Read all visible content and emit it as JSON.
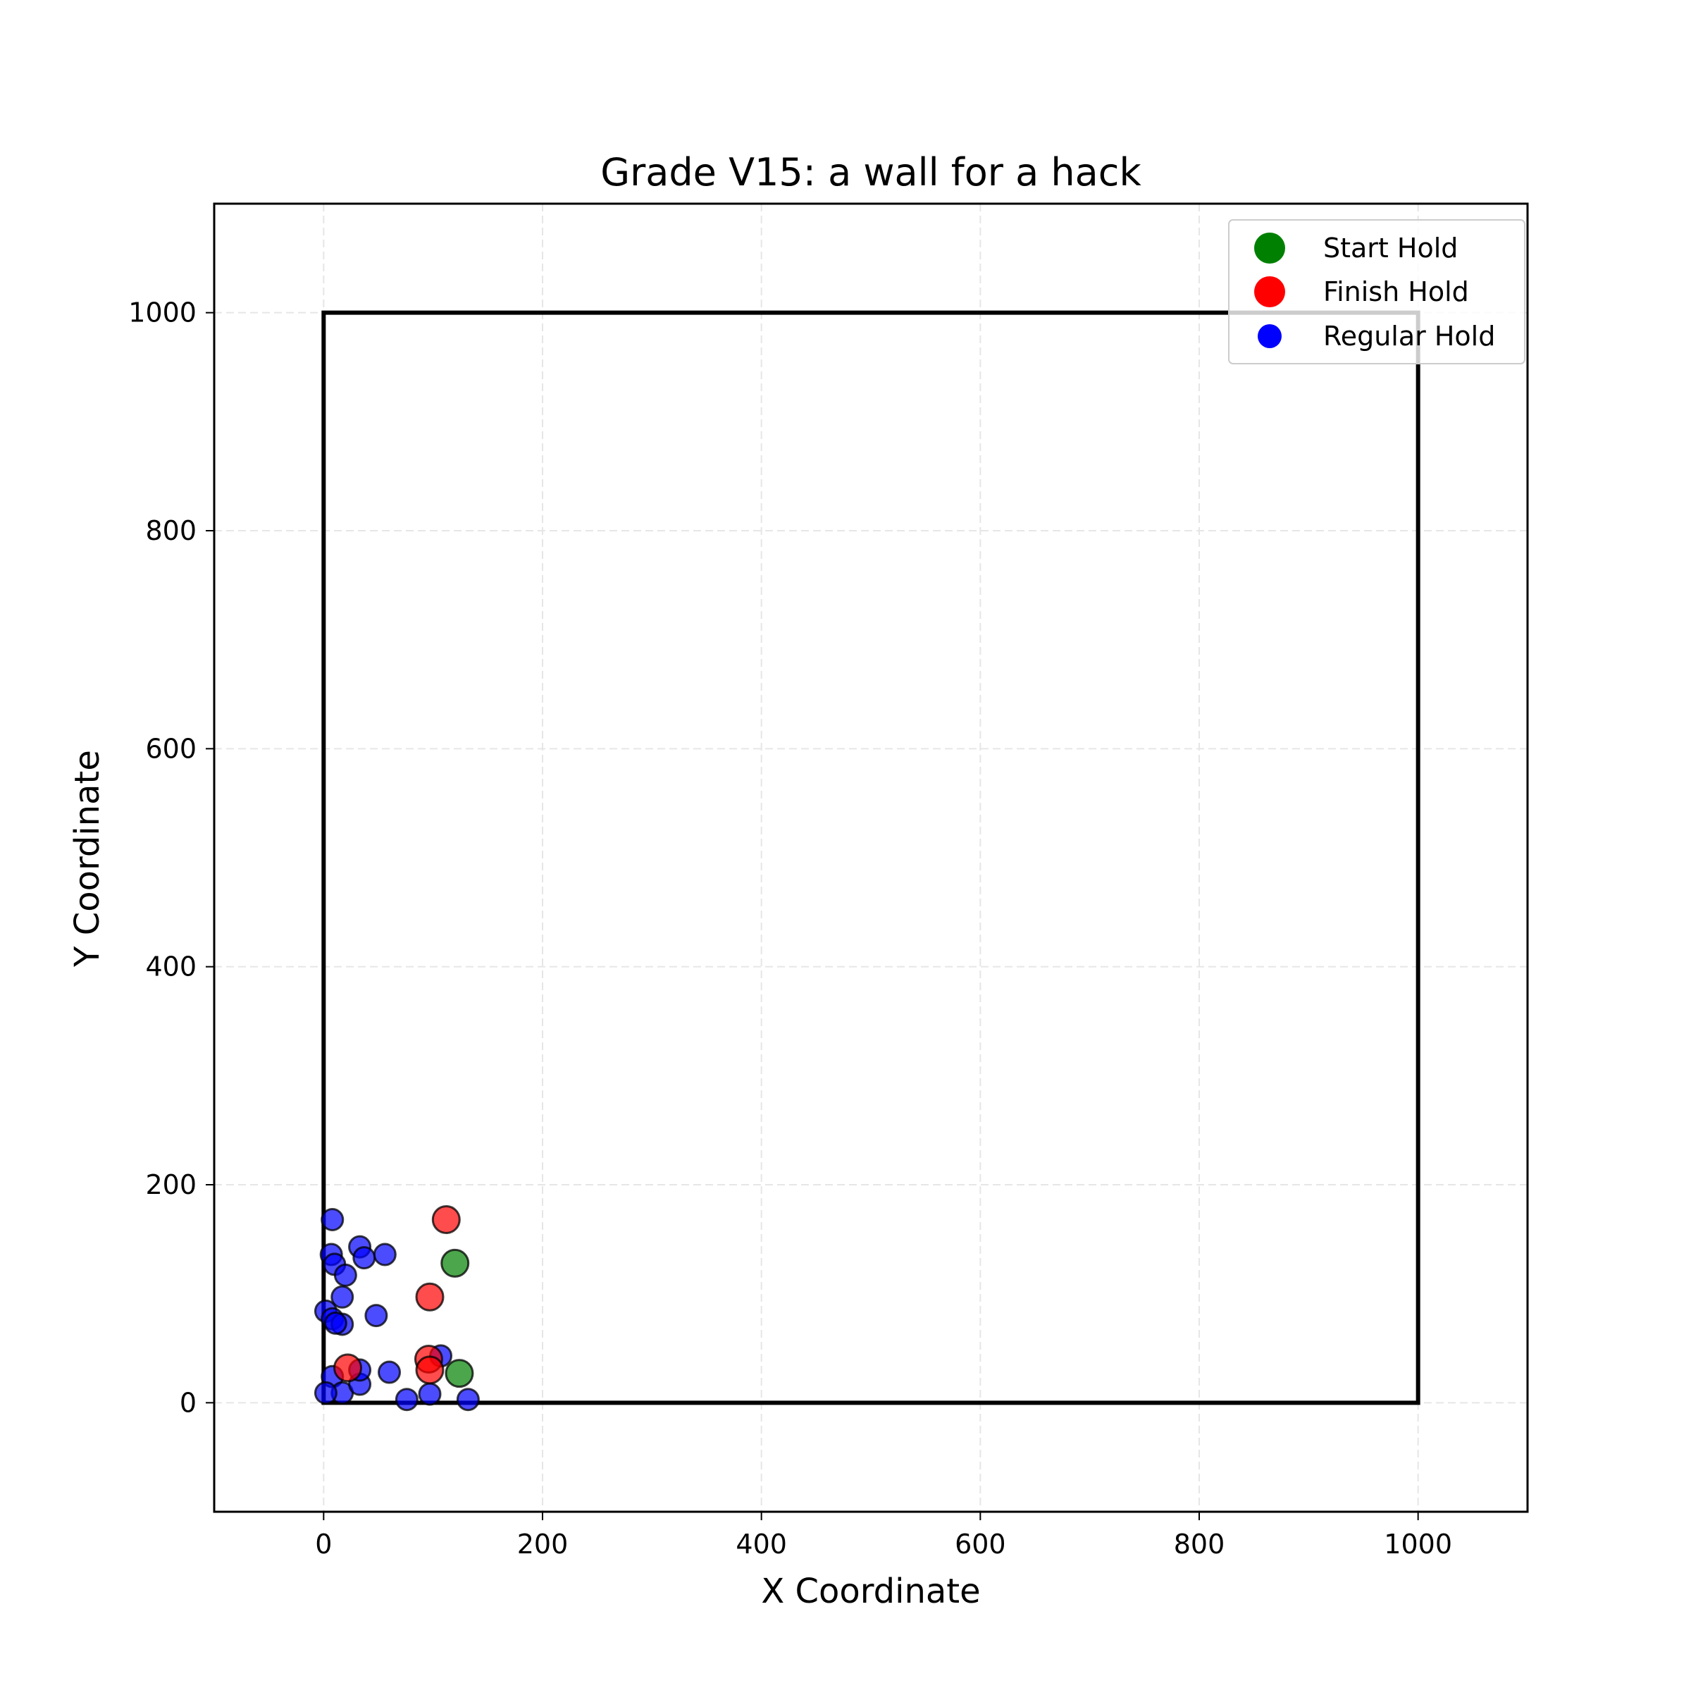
{
  "chart_data": {
    "type": "scatter",
    "title": "Grade V15: a wall for a hack",
    "xlabel": "X Coordinate",
    "ylabel": "Y Coordinate",
    "xlim": [
      -100,
      1100
    ],
    "ylim": [
      -100,
      1100
    ],
    "x_ticks": [
      0,
      200,
      400,
      600,
      800,
      1000
    ],
    "y_ticks": [
      0,
      200,
      400,
      600,
      800,
      1000
    ],
    "x_tick_labels": [
      "0",
      "200",
      "400",
      "600",
      "800",
      "1000"
    ],
    "y_tick_labels": [
      "0",
      "200",
      "400",
      "600",
      "800",
      "1000"
    ],
    "grid": true,
    "legend_position": "top-right",
    "wall_outline": [
      [
        0,
        0
      ],
      [
        1000,
        0
      ],
      [
        1000,
        1000
      ],
      [
        0,
        1000
      ]
    ],
    "series": [
      {
        "name": "Regular Hold",
        "color": "#0000ff",
        "points": [
          [
            8,
            168
          ],
          [
            7,
            136
          ],
          [
            10,
            127
          ],
          [
            20,
            117
          ],
          [
            33,
            143
          ],
          [
            37,
            133
          ],
          [
            56,
            136
          ],
          [
            17,
            97
          ],
          [
            48,
            80
          ],
          [
            2,
            84
          ],
          [
            8,
            77
          ],
          [
            17,
            72
          ],
          [
            11,
            73
          ],
          [
            8,
            24
          ],
          [
            17,
            9
          ],
          [
            2,
            9
          ],
          [
            33,
            17
          ],
          [
            33,
            30
          ],
          [
            60,
            28
          ],
          [
            76,
            3
          ],
          [
            97,
            8
          ],
          [
            107,
            43
          ],
          [
            132,
            3
          ]
        ]
      },
      {
        "name": "Finish Hold",
        "color": "#ff0000",
        "points": [
          [
            112,
            168
          ],
          [
            97,
            97
          ],
          [
            96,
            40
          ],
          [
            97,
            30
          ],
          [
            22,
            32
          ]
        ]
      },
      {
        "name": "Start Hold",
        "color": "#008000",
        "points": [
          [
            120,
            128
          ],
          [
            124,
            27
          ]
        ]
      }
    ],
    "legend": [
      {
        "label": "Start Hold",
        "color": "#008000"
      },
      {
        "label": "Finish Hold",
        "color": "#ff0000"
      },
      {
        "label": "Regular Hold",
        "color": "#0000ff"
      }
    ]
  }
}
